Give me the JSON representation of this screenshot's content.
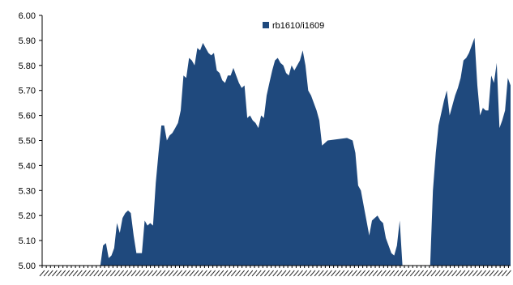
{
  "chart_data": {
    "type": "area",
    "title": "",
    "xlabel": "",
    "ylabel": "",
    "ylim": [
      5.0,
      6.0
    ],
    "y_ticks": [
      "5.00",
      "5.10",
      "5.20",
      "5.30",
      "5.40",
      "5.50",
      "5.60",
      "5.70",
      "5.80",
      "5.90",
      "6.00"
    ],
    "grid": false,
    "legend": "top-center",
    "x_count": 226,
    "x_tick_labels_legible": false,
    "series": [
      {
        "name": "rb1610/i1609",
        "color": "#1f497d",
        "points": [
          [
            0,
            5.0
          ],
          [
            21,
            5.0
          ],
          [
            22,
            5.08
          ],
          [
            23,
            5.09
          ],
          [
            24,
            5.03
          ],
          [
            25,
            5.04
          ],
          [
            26,
            5.07
          ],
          [
            27,
            5.17
          ],
          [
            28,
            5.13
          ],
          [
            29,
            5.19
          ],
          [
            30,
            5.21
          ],
          [
            31,
            5.22
          ],
          [
            32,
            5.21
          ],
          [
            33,
            5.12
          ],
          [
            34,
            5.05
          ],
          [
            35,
            5.05
          ],
          [
            36,
            5.05
          ],
          [
            37,
            5.18
          ],
          [
            38,
            5.16
          ],
          [
            39,
            5.17
          ],
          [
            40,
            5.16
          ],
          [
            41,
            5.33
          ],
          [
            42,
            5.45
          ],
          [
            43,
            5.56
          ],
          [
            44,
            5.56
          ],
          [
            45,
            5.5
          ],
          [
            46,
            5.52
          ],
          [
            47,
            5.53
          ],
          [
            48,
            5.55
          ],
          [
            49,
            5.57
          ],
          [
            50,
            5.62
          ],
          [
            51,
            5.76
          ],
          [
            52,
            5.75
          ],
          [
            53,
            5.83
          ],
          [
            54,
            5.82
          ],
          [
            55,
            5.8
          ],
          [
            56,
            5.87
          ],
          [
            57,
            5.86
          ],
          [
            58,
            5.89
          ],
          [
            59,
            5.87
          ],
          [
            60,
            5.85
          ],
          [
            61,
            5.84
          ],
          [
            62,
            5.85
          ],
          [
            63,
            5.78
          ],
          [
            64,
            5.77
          ],
          [
            65,
            5.74
          ],
          [
            66,
            5.73
          ],
          [
            67,
            5.76
          ],
          [
            68,
            5.76
          ],
          [
            69,
            5.79
          ],
          [
            70,
            5.76
          ],
          [
            71,
            5.73
          ],
          [
            72,
            5.71
          ],
          [
            73,
            5.72
          ],
          [
            74,
            5.59
          ],
          [
            75,
            5.6
          ],
          [
            76,
            5.58
          ],
          [
            77,
            5.57
          ],
          [
            78,
            5.55
          ],
          [
            79,
            5.6
          ],
          [
            80,
            5.59
          ],
          [
            81,
            5.68
          ],
          [
            82,
            5.73
          ],
          [
            83,
            5.78
          ],
          [
            84,
            5.82
          ],
          [
            85,
            5.83
          ],
          [
            86,
            5.81
          ],
          [
            87,
            5.8
          ],
          [
            88,
            5.77
          ],
          [
            89,
            5.76
          ],
          [
            90,
            5.8
          ],
          [
            91,
            5.78
          ],
          [
            92,
            5.8
          ],
          [
            93,
            5.82
          ],
          [
            94,
            5.86
          ],
          [
            95,
            5.8
          ],
          [
            96,
            5.7
          ],
          [
            97,
            5.68
          ],
          [
            98,
            5.65
          ],
          [
            99,
            5.62
          ],
          [
            100,
            5.58
          ],
          [
            101,
            5.48
          ],
          [
            102,
            5.49
          ],
          [
            103,
            5.5
          ],
          [
            110,
            5.51
          ],
          [
            112,
            5.5
          ],
          [
            113,
            5.45
          ],
          [
            114,
            5.32
          ],
          [
            115,
            5.3
          ],
          [
            116,
            5.24
          ],
          [
            117,
            5.18
          ],
          [
            118,
            5.12
          ],
          [
            119,
            5.18
          ],
          [
            120,
            5.19
          ],
          [
            121,
            5.2
          ],
          [
            122,
            5.18
          ],
          [
            123,
            5.17
          ],
          [
            124,
            5.11
          ],
          [
            125,
            5.08
          ],
          [
            126,
            5.05
          ],
          [
            127,
            5.04
          ],
          [
            128,
            5.08
          ],
          [
            129,
            5.18
          ],
          [
            130,
            5.0
          ],
          [
            140,
            5.0
          ],
          [
            141,
            5.3
          ],
          [
            142,
            5.45
          ],
          [
            143,
            5.56
          ],
          [
            144,
            5.61
          ],
          [
            145,
            5.66
          ],
          [
            146,
            5.7
          ],
          [
            147,
            5.6
          ],
          [
            148,
            5.64
          ],
          [
            149,
            5.68
          ],
          [
            150,
            5.71
          ],
          [
            151,
            5.75
          ],
          [
            152,
            5.82
          ],
          [
            153,
            5.83
          ],
          [
            154,
            5.85
          ],
          [
            155,
            5.88
          ],
          [
            156,
            5.91
          ],
          [
            157,
            5.72
          ],
          [
            158,
            5.6
          ],
          [
            159,
            5.63
          ],
          [
            160,
            5.62
          ],
          [
            161,
            5.62
          ],
          [
            162,
            5.76
          ],
          [
            163,
            5.73
          ],
          [
            164,
            5.81
          ],
          [
            165,
            5.55
          ],
          [
            166,
            5.58
          ],
          [
            167,
            5.62
          ],
          [
            168,
            5.75
          ],
          [
            169,
            5.72
          ]
        ]
      }
    ]
  }
}
